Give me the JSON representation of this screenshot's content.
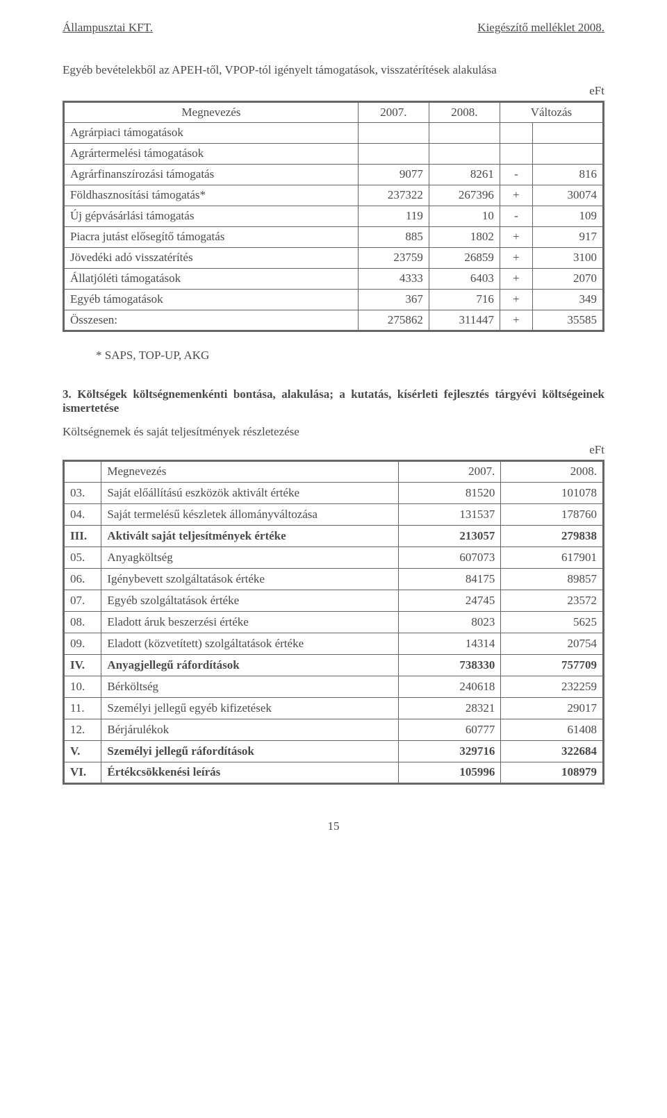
{
  "header": {
    "left": "Állampusztai KFT.",
    "right": "Kiegészítő melléklet 2008."
  },
  "section1": {
    "intro": "Egyéb bevételekből az APEH-től, VPOP-tól igényelt támogatások, visszatérítések alakulása",
    "unit": "eFt",
    "columns": [
      "Megnevezés",
      "2007.",
      "2008.",
      "Változás"
    ],
    "rows": [
      {
        "name": "Agrárpiaci támogatások",
        "v2007": "",
        "v2008": "",
        "sign": "",
        "change": ""
      },
      {
        "name": "Agrártermelési támogatások",
        "v2007": "",
        "v2008": "",
        "sign": "",
        "change": ""
      },
      {
        "name": "Agrárfinanszírozási támogatás",
        "v2007": "9077",
        "v2008": "8261",
        "sign": "-",
        "change": "816"
      },
      {
        "name": "Földhasznosítási támogatás*",
        "v2007": "237322",
        "v2008": "267396",
        "sign": "+",
        "change": "30074"
      },
      {
        "name": "Új gépvásárlási támogatás",
        "v2007": "119",
        "v2008": "10",
        "sign": "-",
        "change": "109"
      },
      {
        "name": "Piacra jutást elősegítő támogatás",
        "v2007": "885",
        "v2008": "1802",
        "sign": "+",
        "change": "917"
      },
      {
        "name": "Jövedéki adó visszatérítés",
        "v2007": "23759",
        "v2008": "26859",
        "sign": "+",
        "change": "3100"
      },
      {
        "name": "Állatjóléti támogatások",
        "v2007": "4333",
        "v2008": "6403",
        "sign": "+",
        "change": "2070"
      },
      {
        "name": "Egyéb támogatások",
        "v2007": "367",
        "v2008": "716",
        "sign": "+",
        "change": "349"
      }
    ],
    "total": {
      "name": "Összesen:",
      "v2007": "275862",
      "v2008": "311447",
      "sign": "+",
      "change": "35585"
    },
    "footnote": "* SAPS, TOP-UP, AKG"
  },
  "section2": {
    "heading": "3. Költségek költségnemenkénti bontása, alakulása; a kutatás, kísérleti fejlesztés tárgyévi költségeinek ismertetése",
    "heading_num": "3.",
    "subheading": "Költségnemek és saját teljesítmények részletezése",
    "unit": "eFt",
    "columns": [
      "",
      "Megnevezés",
      "2007.",
      "2008."
    ],
    "rows": [
      {
        "code": "03.",
        "name": "Saját előállítású eszközök aktivált értéke",
        "v2007": "81520",
        "v2008": "101078",
        "bold": false
      },
      {
        "code": "04.",
        "name": "Saját termelésű készletek állományváltozása",
        "v2007": "131537",
        "v2008": "178760",
        "bold": false
      },
      {
        "code": "III.",
        "name": "Aktivált saját teljesítmények értéke",
        "v2007": "213057",
        "v2008": "279838",
        "bold": true
      },
      {
        "code": "05.",
        "name": "Anyagköltség",
        "v2007": "607073",
        "v2008": "617901",
        "bold": false
      },
      {
        "code": "06.",
        "name": "Igénybevett szolgáltatások értéke",
        "v2007": "84175",
        "v2008": "89857",
        "bold": false
      },
      {
        "code": "07.",
        "name": "Egyéb szolgáltatások értéke",
        "v2007": "24745",
        "v2008": "23572",
        "bold": false
      },
      {
        "code": "08.",
        "name": "Eladott áruk beszerzési értéke",
        "v2007": "8023",
        "v2008": "5625",
        "bold": false
      },
      {
        "code": "09.",
        "name": "Eladott (közvetített) szolgáltatások értéke",
        "v2007": "14314",
        "v2008": "20754",
        "bold": false
      },
      {
        "code": "IV.",
        "name": "Anyagjellegű ráfordítások",
        "v2007": "738330",
        "v2008": "757709",
        "bold": true
      },
      {
        "code": "10.",
        "name": "Bérköltség",
        "v2007": "240618",
        "v2008": "232259",
        "bold": false
      },
      {
        "code": "11.",
        "name": "Személyi jellegű egyéb kifizetések",
        "v2007": "28321",
        "v2008": "29017",
        "bold": false
      },
      {
        "code": "12.",
        "name": "Bérjárulékok",
        "v2007": "60777",
        "v2008": "61408",
        "bold": false
      },
      {
        "code": "V.",
        "name": "Személyi jellegű ráfordítások",
        "v2007": "329716",
        "v2008": "322684",
        "bold": true
      },
      {
        "code": "VI.",
        "name": "Értékcsökkenési leírás",
        "v2007": "105996",
        "v2008": "108979",
        "bold": true
      }
    ]
  },
  "pageNumber": "15"
}
